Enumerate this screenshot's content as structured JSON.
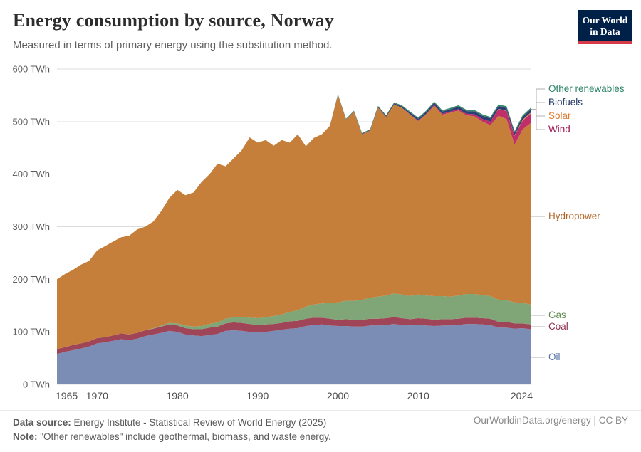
{
  "header": {
    "title": "Energy consumption by source, Norway",
    "subtitle": "Measured in terms of primary energy using the substitution method."
  },
  "logo": {
    "line1": "Our World",
    "line2": "in Data",
    "bg": "#002147",
    "accent": "#d73a49"
  },
  "footer": {
    "source_label": "Data source:",
    "source_text": " Energy Institute - Statistical Review of World Energy (2025)",
    "note_label": "Note:",
    "note_text": " \"Other renewables\" include geothermal, biomass, and waste energy.",
    "credit": "OurWorldinData.org/energy | CC BY"
  },
  "chart_data": {
    "type": "area",
    "stacked": true,
    "title": "Energy consumption by source, Norway",
    "unit": "TWh",
    "grid": true,
    "legend_position": "right",
    "ylim": [
      0,
      600
    ],
    "ytick_values": [
      0,
      100,
      200,
      300,
      400,
      500,
      600
    ],
    "ytick_labels": [
      "0 TWh",
      "100 TWh",
      "200 TWh",
      "300 TWh",
      "400 TWh",
      "500 TWh",
      "600 TWh"
    ],
    "xtick_values": [
      1965,
      1970,
      1980,
      1990,
      2000,
      2010,
      2024
    ],
    "xtick_labels": [
      "1965",
      "1970",
      "1980",
      "1990",
      "2000",
      "2010",
      "2024"
    ],
    "x": [
      1965,
      1966,
      1967,
      1968,
      1969,
      1970,
      1971,
      1972,
      1973,
      1974,
      1975,
      1976,
      1977,
      1978,
      1979,
      1980,
      1981,
      1982,
      1983,
      1984,
      1985,
      1986,
      1987,
      1988,
      1989,
      1990,
      1991,
      1992,
      1993,
      1994,
      1995,
      1996,
      1997,
      1998,
      1999,
      2000,
      2001,
      2002,
      2003,
      2004,
      2005,
      2006,
      2007,
      2008,
      2009,
      2010,
      2011,
      2012,
      2013,
      2014,
      2015,
      2016,
      2017,
      2018,
      2019,
      2020,
      2021,
      2022,
      2023,
      2024
    ],
    "series": [
      {
        "name": "Oil",
        "color": "#7b8db4",
        "label_color": "#5b76a8",
        "legend_y": 502,
        "connector": "direct",
        "values": [
          58,
          62,
          65,
          68,
          72,
          78,
          80,
          83,
          86,
          84,
          87,
          92,
          95,
          98,
          102,
          100,
          95,
          93,
          92,
          94,
          96,
          102,
          103,
          102,
          100,
          99,
          100,
          102,
          104,
          106,
          107,
          111,
          113,
          114,
          112,
          111,
          111,
          110,
          110,
          112,
          112,
          113,
          115,
          113,
          112,
          113,
          112,
          111,
          112,
          112,
          113,
          115,
          115,
          114,
          113,
          108,
          108,
          106,
          107,
          105
        ]
      },
      {
        "name": "Coal",
        "color": "#a04458",
        "label_color": "#8f3050",
        "legend_y": 459,
        "connector": "direct",
        "values": [
          9,
          9,
          10,
          10,
          10,
          10,
          10,
          10,
          11,
          11,
          11,
          11,
          11,
          12,
          12,
          12,
          12,
          12,
          13,
          14,
          14,
          14,
          15,
          15,
          15,
          14,
          14,
          13,
          13,
          14,
          14,
          14,
          14,
          13,
          13,
          12,
          13,
          13,
          13,
          13,
          13,
          13,
          13,
          13,
          12,
          13,
          13,
          12,
          12,
          12,
          12,
          12,
          12,
          12,
          12,
          11,
          11,
          10,
          9,
          9
        ]
      },
      {
        "name": "Gas",
        "color": "#80a678",
        "label_color": "#5e8b51",
        "legend_y": 443,
        "connector": "direct",
        "values": [
          0,
          0,
          0,
          0,
          0,
          0,
          0,
          0,
          0,
          0,
          0,
          0,
          1,
          2,
          3,
          4,
          5,
          5,
          6,
          7,
          8,
          9,
          10,
          11,
          12,
          13,
          14,
          15,
          16,
          18,
          20,
          23,
          25,
          27,
          30,
          33,
          35,
          36,
          38,
          40,
          42,
          43,
          45,
          45,
          44,
          45,
          44,
          45,
          44,
          43,
          44,
          45,
          45,
          44,
          43,
          42,
          41,
          40,
          39,
          38
        ]
      },
      {
        "name": "Hydropower",
        "color": "#c57f3a",
        "label_color": "#b0662a",
        "legend_y": 304,
        "connector": "direct",
        "values": [
          133,
          139,
          143,
          150,
          153,
          167,
          173,
          179,
          183,
          188,
          197,
          197,
          203,
          218,
          238,
          254,
          248,
          255,
          274,
          285,
          302,
          290,
          302,
          317,
          343,
          334,
          337,
          324,
          332,
          322,
          335,
          305,
          317,
          322,
          337,
          395,
          345,
          360,
          315,
          318,
          360,
          340,
          360,
          355,
          345,
          330,
          345,
          362,
          345,
          350,
          352,
          340,
          338,
          330,
          325,
          350,
          345,
          300,
          330,
          345
        ]
      },
      {
        "name": "Wind",
        "color": "#c02f6a",
        "label_color": "#a01c58",
        "legend_y": 182,
        "connector": "bracket",
        "values": [
          0,
          0,
          0,
          0,
          0,
          0,
          0,
          0,
          0,
          0,
          0,
          0,
          0,
          0,
          0,
          0,
          0,
          0,
          0,
          0,
          0,
          0,
          0,
          0,
          0,
          0,
          0,
          0,
          0,
          0,
          0,
          0,
          0,
          0,
          0,
          0,
          0,
          0,
          0,
          0,
          0,
          0,
          0,
          0,
          1,
          1,
          1,
          2,
          2,
          2,
          3,
          3,
          4,
          5,
          7,
          13,
          15,
          17,
          17,
          18
        ]
      },
      {
        "name": "Solar",
        "color": "#e79545",
        "label_color": "#dd7a2e",
        "legend_y": 163,
        "connector": "bracket",
        "values": [
          0,
          0,
          0,
          0,
          0,
          0,
          0,
          0,
          0,
          0,
          0,
          0,
          0,
          0,
          0,
          0,
          0,
          0,
          0,
          0,
          0,
          0,
          0,
          0,
          0,
          0,
          0,
          0,
          0,
          0,
          0,
          0,
          0,
          0,
          0,
          0,
          0,
          0,
          0,
          0,
          0,
          0,
          0,
          0,
          0,
          0,
          0,
          0,
          0,
          0,
          0,
          0,
          0,
          0,
          0.2,
          0.4,
          0.6,
          1,
          1.5,
          2
        ]
      },
      {
        "name": "Biofuels",
        "color": "#2c3e73",
        "label_color": "#1d3462",
        "legend_y": 144,
        "connector": "bracket",
        "values": [
          0,
          0,
          0,
          0,
          0,
          0,
          0,
          0,
          0,
          0,
          0,
          0,
          0,
          0,
          0,
          0,
          0,
          0,
          0,
          0,
          0,
          0,
          0,
          0,
          0,
          0,
          0,
          0,
          0,
          0,
          0,
          0,
          0,
          0,
          0,
          0.5,
          0.6,
          0.8,
          1,
          1.2,
          1.5,
          1.8,
          2,
          2.5,
          3,
          3.5,
          3.8,
          4,
          4.2,
          4.5,
          4.5,
          5,
          5.5,
          6,
          6,
          5.5,
          5.5,
          5,
          5.5,
          6
        ]
      },
      {
        "name": "Other renewables",
        "color": "#3d8b6d",
        "label_color": "#2c8465",
        "legend_y": 125,
        "connector": "bracket",
        "values": [
          0,
          0,
          0,
          0,
          0,
          0,
          0,
          0,
          0,
          0,
          0,
          0,
          0,
          0,
          0,
          0,
          0,
          0,
          0,
          0,
          0,
          0,
          0,
          0,
          0,
          0,
          0,
          0,
          0,
          0,
          0,
          0,
          0,
          0,
          0,
          1,
          1,
          1,
          1.2,
          1.2,
          1.5,
          1.5,
          1.8,
          2,
          2,
          2,
          2.2,
          2.3,
          2.4,
          2.5,
          2.5,
          2.6,
          2.7,
          2.8,
          2.8,
          2.9,
          3,
          3,
          3,
          3
        ]
      }
    ]
  }
}
